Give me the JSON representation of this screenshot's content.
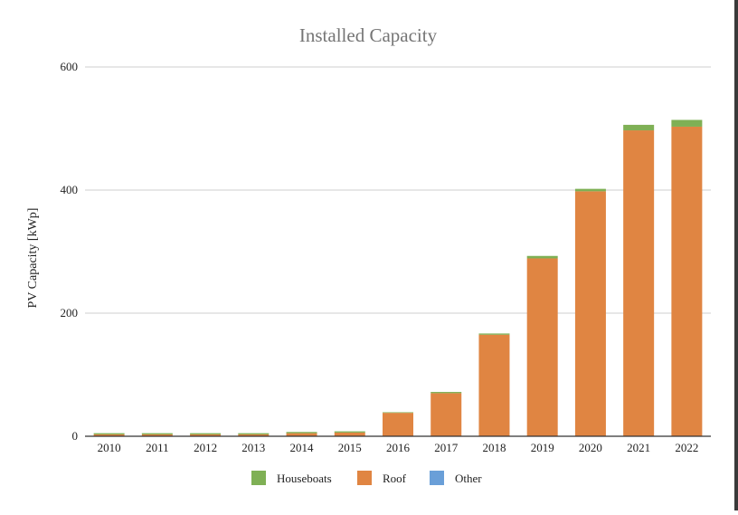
{
  "chart_data": {
    "type": "bar",
    "stacked": true,
    "title": "Installed Capacity",
    "xlabel": "",
    "ylabel": "PV Capacity [kWp]",
    "ylim": [
      0,
      600
    ],
    "yticks": [
      0,
      200,
      400,
      600
    ],
    "grid": true,
    "legend_position": "bottom",
    "categories": [
      "2010",
      "2011",
      "2012",
      "2013",
      "2014",
      "2015",
      "2016",
      "2017",
      "2018",
      "2019",
      "2020",
      "2021",
      "2022"
    ],
    "series": [
      {
        "name": "Roof",
        "color": "#e08542",
        "values": [
          3,
          3,
          3,
          3,
          5,
          6,
          38,
          70,
          165,
          289,
          398,
          497,
          503
        ]
      },
      {
        "name": "Houseboats",
        "color": "#7fb055",
        "values": [
          2,
          2,
          2,
          2,
          2,
          2,
          1,
          2,
          2,
          4,
          4,
          9,
          11
        ]
      },
      {
        "name": "Other",
        "color": "#6a9fd8",
        "values": [
          0,
          0,
          0,
          0,
          0,
          0,
          0,
          0,
          0,
          0,
          0,
          0,
          0
        ]
      }
    ],
    "legend_order": [
      "Houseboats",
      "Roof",
      "Other"
    ]
  }
}
